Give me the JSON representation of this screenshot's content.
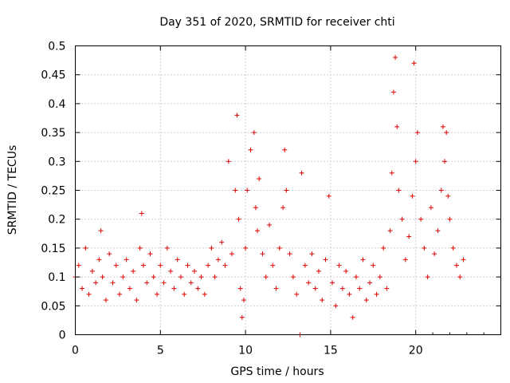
{
  "chart_data": {
    "type": "scatter",
    "title": "Day 351 of 2020, SRMTID for receiver chti",
    "xlabel": "GPS time / hours",
    "ylabel": "SRMTID / TECUs",
    "xlim": [
      0,
      25
    ],
    "ylim": [
      0,
      0.5
    ],
    "grid": true,
    "xticks": [
      0,
      5,
      10,
      15,
      20
    ],
    "xtick_labels": [
      "0",
      "5",
      "10",
      "15",
      "20"
    ],
    "yticks": [
      0,
      0.05,
      0.1,
      0.15,
      0.2,
      0.25,
      0.3,
      0.35,
      0.4,
      0.45,
      0.5
    ],
    "ytick_labels": [
      "0",
      "0.05",
      "0.1",
      "0.15",
      "0.2",
      "0.25",
      "0.3",
      "0.35",
      "0.4",
      "0.45",
      "0.5"
    ],
    "series": [
      {
        "name": "SRMTID",
        "marker": "+",
        "color": "#e00000",
        "x": [
          0.0,
          0.2,
          0.4,
          0.6,
          0.8,
          1.0,
          1.2,
          1.4,
          1.5,
          1.6,
          1.8,
          2.0,
          2.2,
          2.4,
          2.6,
          2.8,
          3.0,
          3.2,
          3.4,
          3.6,
          3.8,
          3.9,
          4.0,
          4.2,
          4.4,
          4.6,
          4.8,
          5.0,
          5.2,
          5.4,
          5.6,
          5.8,
          6.0,
          6.2,
          6.4,
          6.6,
          6.8,
          7.0,
          7.2,
          7.4,
          7.6,
          7.8,
          8.0,
          8.2,
          8.4,
          8.6,
          8.8,
          9.0,
          9.2,
          9.4,
          9.5,
          9.6,
          9.7,
          9.8,
          9.9,
          10.0,
          10.1,
          10.3,
          10.5,
          10.6,
          10.7,
          10.8,
          11.0,
          11.2,
          11.4,
          11.6,
          11.8,
          12.0,
          12.2,
          12.3,
          12.4,
          12.6,
          12.8,
          13.0,
          13.2,
          13.3,
          13.5,
          13.7,
          13.9,
          14.1,
          14.3,
          14.5,
          14.7,
          14.9,
          15.1,
          15.3,
          15.5,
          15.7,
          15.9,
          16.1,
          16.3,
          16.5,
          16.7,
          16.9,
          17.1,
          17.3,
          17.5,
          17.7,
          17.9,
          18.1,
          18.3,
          18.5,
          18.6,
          18.7,
          18.8,
          18.9,
          19.0,
          19.2,
          19.4,
          19.6,
          19.8,
          19.9,
          20.0,
          20.1,
          20.3,
          20.5,
          20.7,
          20.9,
          21.1,
          21.3,
          21.5,
          21.6,
          21.7,
          21.8,
          21.9,
          22.0,
          22.2,
          22.4,
          22.6,
          22.8
        ],
        "y": [
          0.1,
          0.12,
          0.08,
          0.15,
          0.07,
          0.11,
          0.09,
          0.13,
          0.18,
          0.1,
          0.06,
          0.14,
          0.09,
          0.12,
          0.07,
          0.1,
          0.13,
          0.08,
          0.11,
          0.06,
          0.15,
          0.21,
          0.12,
          0.09,
          0.14,
          0.1,
          0.07,
          0.12,
          0.09,
          0.15,
          0.11,
          0.08,
          0.13,
          0.1,
          0.07,
          0.12,
          0.09,
          0.11,
          0.08,
          0.1,
          0.07,
          0.12,
          0.15,
          0.1,
          0.13,
          0.16,
          0.12,
          0.3,
          0.14,
          0.25,
          0.38,
          0.2,
          0.08,
          0.03,
          0.06,
          0.15,
          0.25,
          0.32,
          0.35,
          0.22,
          0.18,
          0.27,
          0.14,
          0.1,
          0.19,
          0.12,
          0.08,
          0.15,
          0.22,
          0.32,
          0.25,
          0.14,
          0.1,
          0.07,
          0.0,
          0.28,
          0.12,
          0.09,
          0.14,
          0.08,
          0.11,
          0.06,
          0.13,
          0.24,
          0.09,
          0.05,
          0.12,
          0.08,
          0.11,
          0.07,
          0.03,
          0.1,
          0.08,
          0.13,
          0.06,
          0.09,
          0.12,
          0.07,
          0.1,
          0.15,
          0.08,
          0.18,
          0.28,
          0.42,
          0.48,
          0.36,
          0.25,
          0.2,
          0.13,
          0.17,
          0.24,
          0.47,
          0.3,
          0.35,
          0.2,
          0.15,
          0.1,
          0.22,
          0.14,
          0.18,
          0.25,
          0.36,
          0.3,
          0.35,
          0.24,
          0.2,
          0.15,
          0.12,
          0.1,
          0.13
        ]
      }
    ]
  }
}
